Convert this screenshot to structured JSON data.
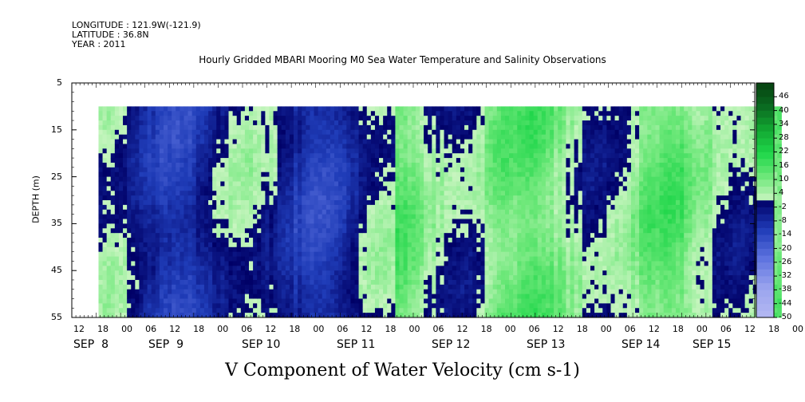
{
  "header": {
    "longitude": "LONGITUDE : 121.9W(-121.9)",
    "latitude": "LATITUDE : 36.8N",
    "year": "YEAR : 2011"
  },
  "chart_data": {
    "type": "heatmap",
    "title": "Hourly Gridded MBARI Mooring M0 Sea Water Temperature and Salinity Observations",
    "xlabel": "V Component of Water Velocity (cm s-1)",
    "ylabel": "DEPTH (m)",
    "y_ticks": [
      "5",
      "15",
      "25",
      "35",
      "45",
      "55"
    ],
    "ylim": [
      5,
      55
    ],
    "y_inverted": true,
    "data_depth_range": [
      10,
      55
    ],
    "x_range_hours_label": "SEP 8 12:00 to SEP 15 12:00",
    "hour_ticks": [
      "12",
      "18",
      "00",
      "06",
      "12",
      "18",
      "00",
      "06",
      "12",
      "18",
      "00",
      "06",
      "12",
      "18",
      "00",
      "06",
      "12",
      "18",
      "00",
      "06",
      "12",
      "18",
      "00",
      "06",
      "12",
      "18",
      "00",
      "06",
      "12",
      "18",
      "00",
      "06"
    ],
    "date_ticks": [
      "SEP  8",
      "SEP  9",
      "SEP 10",
      "SEP 11",
      "SEP 12",
      "SEP 13",
      "SEP 14",
      "SEP 15"
    ],
    "data_start": "SEP 8 17:00",
    "colorbar": {
      "labels": [
        "46",
        "40",
        "34",
        "28",
        "22",
        "16",
        "10",
        "4",
        "-2",
        "-8",
        "-14",
        "-20",
        "-26",
        "-32",
        "-38",
        "-44",
        "-50"
      ],
      "range": [
        -50,
        52
      ],
      "step": 3,
      "negative_colors": [
        "#000066",
        "#1f3cb8",
        "#5f74e0",
        "#9aa4ee",
        "#b4b8f2"
      ],
      "positive_colors": [
        "#c8f5c0",
        "#6ee87a",
        "#1fd64a",
        "#12a832",
        "#0a6a20",
        "#064010"
      ]
    },
    "segments": [
      {
        "start_day": "SEP 8 17:00",
        "end_day": "SEP 11 18:00",
        "dominant": "weak negative / weak positive mix",
        "typical_range": [
          -14,
          4
        ]
      },
      {
        "start_day": "SEP 11 18:00",
        "end_day": "SEP 15 17:00",
        "dominant": "positive",
        "typical_range": [
          -2,
          16
        ]
      }
    ]
  }
}
